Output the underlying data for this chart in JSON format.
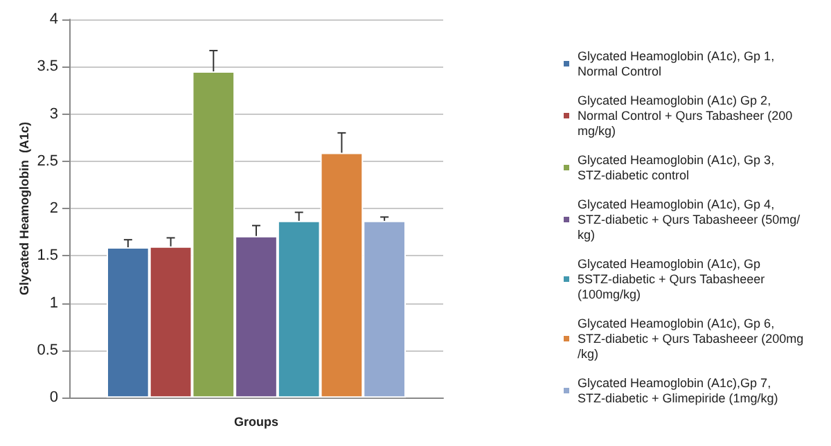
{
  "chart_data": {
    "type": "bar",
    "xlabel": "Groups",
    "ylabel": "Glycated Heamoglobin  (A1c)",
    "categories": [
      null
    ],
    "ylim": [
      0,
      4
    ],
    "yticks": [
      0,
      0.5,
      1,
      1.5,
      2,
      2.5,
      3,
      3.5,
      4
    ],
    "grid": "y",
    "legend": "right",
    "series": [
      {
        "name": "Glycated Heamoglobin (A1c), Gp 1, Normal Control",
        "color": "#4573a7",
        "values": [
          1.59
        ],
        "errors": [
          [
            1.59,
            1.67
          ]
        ]
      },
      {
        "name": "Glycated Heamoglobin (A1c) Gp 2, Normal Control + Qurs Tabasheer (200 mg/kg)",
        "color": "#aa4644",
        "values": [
          1.6
        ],
        "errors": [
          [
            1.6,
            1.69
          ]
        ]
      },
      {
        "name": "Glycated Heamoglobin (A1c), Gp 3, STZ-diabetic control",
        "color": "#89a54e",
        "values": [
          3.45
        ],
        "errors": [
          [
            3.45,
            3.67
          ]
        ]
      },
      {
        "name": "Glycated Heamoglobin (A1c), Gp 4,STZ-diabetic + Qurs Tabasheeer (50mg/kg)",
        "color": "#71588f",
        "values": [
          1.71
        ],
        "errors": [
          [
            1.71,
            1.82
          ]
        ]
      },
      {
        "name": "Glycated Heamoglobin (A1c), Gp 5STZ-diabetic + Qurs Tabasheeer (100mg/kg)",
        "color": "#4298af",
        "values": [
          1.87
        ],
        "errors": [
          [
            1.87,
            1.96
          ]
        ]
      },
      {
        "name": "Glycated Heamoglobin (A1c), Gp 6,STZ-diabetic + Qurs Tabasheeer (200mg/kg)",
        "color": "#db843d",
        "values": [
          2.59
        ],
        "errors": [
          [
            2.59,
            2.8
          ]
        ]
      },
      {
        "name": "Glycated Heamoglobin (A1c),Gp 7, STZ-diabetic + Glimepiride (1mg/kg)",
        "color": "#93a9d0",
        "values": [
          1.87
        ],
        "errors": [
          [
            1.87,
            1.91
          ]
        ]
      }
    ]
  }
}
